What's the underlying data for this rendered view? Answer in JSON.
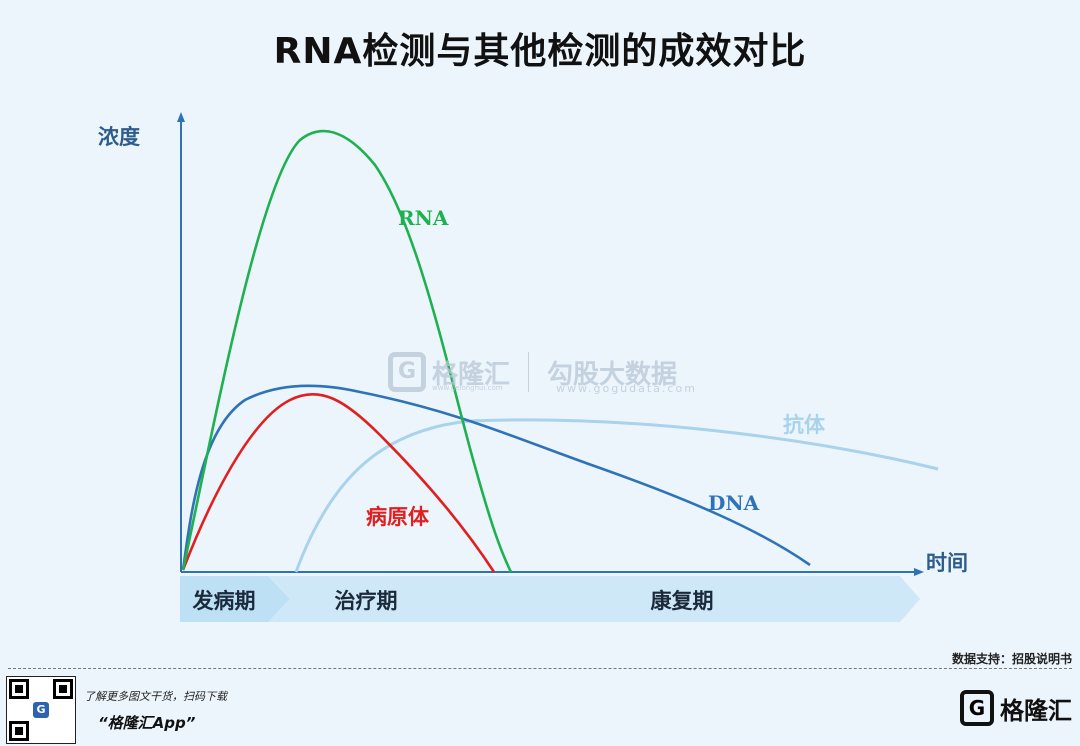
{
  "title": "RNA检测与其他检测的成效对比",
  "axes": {
    "y_label": "浓度",
    "x_label": "时间"
  },
  "curves": {
    "rna": {
      "label": "RNA",
      "color": "#1fb050"
    },
    "dna": {
      "label": "DNA",
      "color": "#2e72b8"
    },
    "pathogen": {
      "label": "病原体",
      "color": "#e02020"
    },
    "antibody": {
      "label": "抗体",
      "color": "#a9d2ec"
    }
  },
  "phases": [
    "发病期",
    "治疗期",
    "康复期"
  ],
  "watermark": {
    "brand": "格隆汇",
    "brand_site": "www.gelonghui.com",
    "partner": "勾股大数据",
    "partner_site": "www.gogudata.com"
  },
  "footer": {
    "source": "数据支持：招股说明书",
    "promo": "了解更多图文干货，扫码下载",
    "app": "“格隆汇App”",
    "brand": "格隆汇",
    "qr_icon": "G"
  }
}
